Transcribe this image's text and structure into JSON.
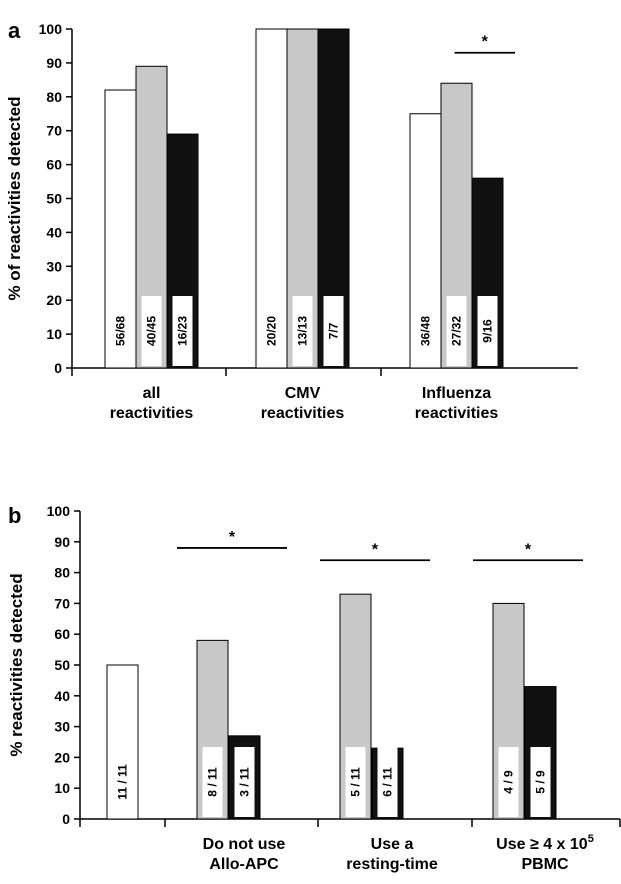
{
  "chart_data": [
    {
      "panel_label": "a",
      "type": "bar",
      "ylabel": "% of reactivities detected",
      "ylim": [
        0,
        100
      ],
      "yticks": [
        0,
        10,
        20,
        30,
        40,
        50,
        60,
        70,
        80,
        90,
        100
      ],
      "categories": [
        {
          "line1": "all",
          "line2": "reactivities"
        },
        {
          "line1": "CMV",
          "line2": "reactivities"
        },
        {
          "line1": "Influenza",
          "line2": "reactivities"
        }
      ],
      "series": [
        {
          "color": "#ffffff",
          "values": [
            82,
            100,
            75
          ],
          "labels": [
            "56/68",
            "20/20",
            "36/48"
          ]
        },
        {
          "color": "#c8c8c8",
          "values": [
            89,
            100,
            84
          ],
          "labels": [
            "40/45",
            "13/13",
            "27/32"
          ]
        },
        {
          "color": "#111111",
          "values": [
            69,
            100,
            56
          ],
          "labels": [
            "16/23",
            "7/7",
            "9/16"
          ]
        }
      ],
      "annotations": [
        {
          "text": "*",
          "category": 2,
          "from_series": 1,
          "to_series": 2,
          "y": 93
        }
      ]
    },
    {
      "panel_label": "b",
      "type": "bar",
      "ylabel": "% reactivities detected",
      "ylim": [
        0,
        100
      ],
      "yticks": [
        0,
        10,
        20,
        30,
        40,
        50,
        60,
        70,
        80,
        90,
        100
      ],
      "categories": [
        {
          "line1": "Do not use",
          "line2": "Allo-APC"
        },
        {
          "line1": "Use a",
          "line2": "resting-time"
        },
        {
          "line1": "Use ≥ 4 x 10",
          "sup": "5",
          "line2": "PBMC"
        }
      ],
      "bars": [
        {
          "category": -1,
          "color": "#ffffff",
          "value": 50,
          "label": "11 / 11"
        },
        {
          "category": 0,
          "color": "#c8c8c8",
          "value": 58,
          "label": "8 / 11"
        },
        {
          "category": 0,
          "color": "#111111",
          "value": 27,
          "label": "3 / 11"
        },
        {
          "category": 1,
          "color": "#c8c8c8",
          "value": 73,
          "label": "5 / 11"
        },
        {
          "category": 1,
          "color": "#111111",
          "value": 23,
          "label": "6 / 11"
        },
        {
          "category": 2,
          "color": "#c8c8c8",
          "value": 70,
          "label": "4 / 9"
        },
        {
          "category": 2,
          "color": "#111111",
          "value": 43,
          "label": "5 / 9"
        }
      ],
      "annotations": [
        {
          "text": "*",
          "category": 0,
          "y": 88
        },
        {
          "text": "*",
          "category": 1,
          "y": 84
        },
        {
          "text": "*",
          "category": 2,
          "y": 84
        }
      ]
    }
  ]
}
